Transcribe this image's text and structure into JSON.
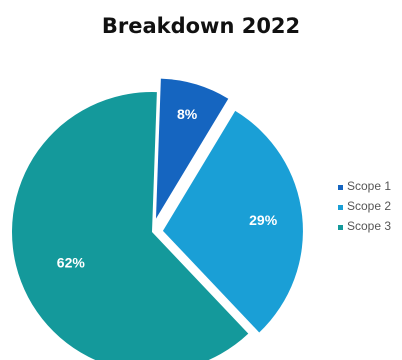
{
  "chart_data": {
    "type": "pie",
    "title": "Breakdown 2022",
    "slices": [
      {
        "name": "Scope 1",
        "value": 8,
        "label": "8%",
        "color": "#1565c0"
      },
      {
        "name": "Scope 2",
        "value": 29,
        "label": "29%",
        "color": "#1a9fd6"
      },
      {
        "name": "Scope 3",
        "value": 62,
        "label": "62%",
        "color": "#14999b"
      }
    ],
    "legend": {
      "position": "right",
      "entries": [
        "Scope 1",
        "Scope 2",
        "Scope 3"
      ]
    },
    "exploded": true
  }
}
